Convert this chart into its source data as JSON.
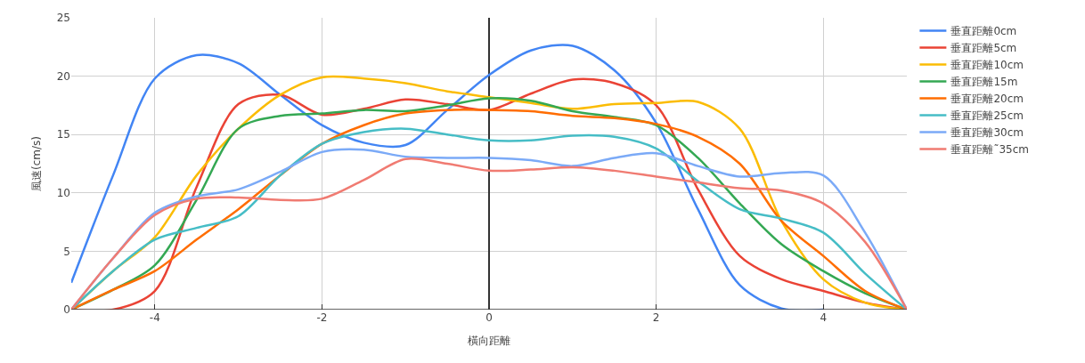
{
  "chart_data": {
    "type": "line",
    "xlabel": "橫向距離",
    "ylabel": "風速(cm/s)",
    "x": [
      -5,
      -4.5,
      -4,
      -3.5,
      -3,
      -2.5,
      -2,
      -1.5,
      -1,
      -0.5,
      0,
      0.5,
      1,
      1.5,
      2,
      2.5,
      3,
      3.5,
      4,
      4.5,
      5
    ],
    "xlim": [
      -5,
      5
    ],
    "xticks": [
      -4,
      -2,
      0,
      2,
      4
    ],
    "ylim": [
      0,
      25
    ],
    "yticks": [
      0,
      5,
      10,
      15,
      20,
      25
    ],
    "grid": true,
    "legend": "top right",
    "marker": "none",
    "line_style": "solid",
    "series": [
      {
        "name": "垂直距離0cm",
        "color": "#4285f4",
        "values": [
          2.3,
          11.5,
          19.8,
          21.8,
          21.1,
          18.4,
          15.8,
          14.3,
          14.1,
          17.1,
          20.1,
          22.2,
          22.6,
          20.5,
          16.0,
          8.6,
          2.1,
          0.1,
          0,
          null,
          null
        ]
      },
      {
        "name": "垂直距離5cm",
        "color": "#ea4335",
        "values": [
          0,
          0,
          1.6,
          10.5,
          17.6,
          18.4,
          16.7,
          17.2,
          18.0,
          17.6,
          17.1,
          18.5,
          19.7,
          19.4,
          17.5,
          10.3,
          4.6,
          2.6,
          1.6,
          0.6,
          0
        ]
      },
      {
        "name": "垂直距離10cm",
        "color": "#fbbc04",
        "values": [
          0,
          3.3,
          6.2,
          11.5,
          15.5,
          18.4,
          19.9,
          19.8,
          19.4,
          18.7,
          18.2,
          17.7,
          17.2,
          17.6,
          17.7,
          17.8,
          15.5,
          7.6,
          2.6,
          0.6,
          0
        ]
      },
      {
        "name": "垂直距離15m",
        "color": "#34a853",
        "values": [
          0,
          1.7,
          3.8,
          9.4,
          15.5,
          16.6,
          16.8,
          17.1,
          17.0,
          17.5,
          18.1,
          17.9,
          17.0,
          16.5,
          15.8,
          13.0,
          9.1,
          5.6,
          3.3,
          1.4,
          0
        ]
      },
      {
        "name": "垂直距離20cm",
        "color": "#ff6d01",
        "values": [
          0,
          1.7,
          3.3,
          6.0,
          8.6,
          11.5,
          14.2,
          15.8,
          16.8,
          17.1,
          17.1,
          17.0,
          16.6,
          16.4,
          15.9,
          14.8,
          12.5,
          7.6,
          4.6,
          1.6,
          0
        ]
      },
      {
        "name": "垂直距離25cm",
        "color": "#46bdc6",
        "values": [
          0,
          3.3,
          6.0,
          7.0,
          8.0,
          11.5,
          14.2,
          15.2,
          15.5,
          15.0,
          14.5,
          14.5,
          14.9,
          14.8,
          13.8,
          11.0,
          8.6,
          7.8,
          6.6,
          3.1,
          0
        ]
      },
      {
        "name": "垂直距離30cm",
        "color": "#7baaf7",
        "values": [
          0,
          4.4,
          8.3,
          9.7,
          10.3,
          11.8,
          13.5,
          13.7,
          13.1,
          13.0,
          13.0,
          12.8,
          12.3,
          13.0,
          13.4,
          12.3,
          11.4,
          11.7,
          11.5,
          6.6,
          0
        ]
      },
      {
        "name": "垂直距離˜35cm",
        "color": "#f07b72",
        "values": [
          0,
          4.4,
          8.1,
          9.5,
          9.6,
          9.4,
          9.5,
          11.1,
          12.9,
          12.5,
          11.9,
          12.0,
          12.2,
          11.9,
          11.4,
          10.9,
          10.4,
          10.2,
          9.1,
          5.8,
          0
        ]
      }
    ]
  }
}
